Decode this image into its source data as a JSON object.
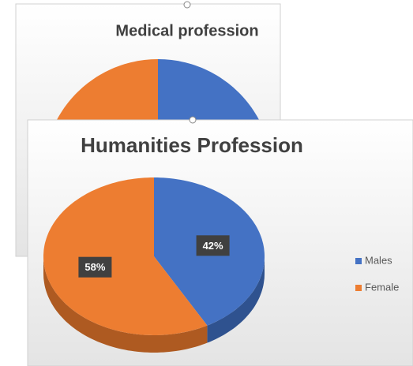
{
  "chart_data": [
    {
      "type": "pie",
      "title": "Medical profession",
      "values": [
        50,
        50
      ],
      "colors": [
        "#4472c4",
        "#ed7d31"
      ]
    },
    {
      "type": "pie",
      "title": "Humanities Profession",
      "categories": [
        "Males",
        "Female"
      ],
      "values": [
        42,
        58
      ],
      "value_labels": [
        "42%",
        "58%"
      ],
      "colors": [
        "#4472c4",
        "#ed7d31"
      ],
      "side_colors": [
        "#2f528f",
        "#ae5a21"
      ],
      "three_d": true,
      "legend": "right"
    }
  ]
}
